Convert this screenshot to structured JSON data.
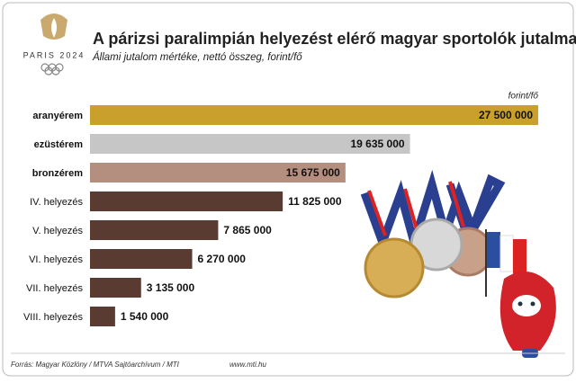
{
  "chart_data": {
    "type": "bar",
    "orientation": "horizontal",
    "title": "A párizsi paralimpián helyezést elérő magyar sportolók jutalmazása",
    "subtitle": "Állami jutalom mértéke, nettó összeg, forint/fő",
    "unit": "forint/fő",
    "logo": "PARIS 2024",
    "source": "Forrás: Magyar Közlöny / MTVA Sajtóarchívum / MTI",
    "website": "www.mti.hu",
    "categories": [
      "aranyérem",
      "ezüstérem",
      "bronzérem",
      "IV. helyezés",
      "V. helyezés",
      "VI. helyezés",
      "VII. helyezés",
      "VIII. helyezés"
    ],
    "values": [
      27500000,
      19635000,
      15675000,
      11825000,
      7865000,
      6270000,
      3135000,
      1540000
    ],
    "value_labels": [
      "27 500 000",
      "19 635 000",
      "15 675 000",
      "11 825 000",
      "7 865 000",
      "6 270 000",
      "3 135 000",
      "1 540 000"
    ],
    "colors": [
      "#c9a02c",
      "#c6c6c6",
      "#b48f80",
      "#5a3b31",
      "#5a3b31",
      "#5a3b31",
      "#5a3b31",
      "#5a3b31"
    ],
    "bold": [
      true,
      true,
      true,
      false,
      false,
      false,
      false,
      false
    ]
  }
}
